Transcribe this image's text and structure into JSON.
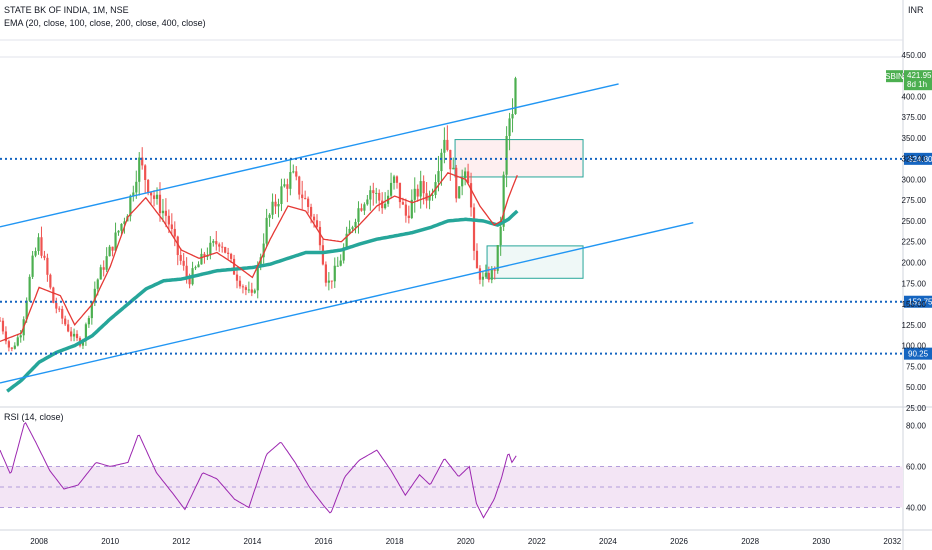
{
  "header": {
    "symbol_line": "STATE BK OF INDIA, 1M, NSE",
    "ema_line": "EMA (20, close, 100, close, 200, close, 400, close)",
    "currency": "INR"
  },
  "rsi_panel": {
    "title": "RSI (14, close)"
  },
  "price_tag": {
    "symbol": "SBIN",
    "price": "421.95",
    "time_left": "8d 1h"
  },
  "colors": {
    "up": "#4caf50",
    "down": "#ef5350",
    "ema20": "#e53935",
    "ema_long": "#26a69a",
    "channel": "#2196f3",
    "level": "#1565c0",
    "rsi": "#9c27b0",
    "rsi_band": "#f3e5f5"
  },
  "chart_data": [
    {
      "type": "candlestick",
      "title": "STATE BK OF INDIA, 1M, NSE",
      "x_axis": {
        "ticks": [
          "2008",
          "2010",
          "2012",
          "2014",
          "2016",
          "2018",
          "2020",
          "2022",
          "2024",
          "2026",
          "2028",
          "2030",
          "2032"
        ]
      },
      "y_axis": {
        "unit": "INR",
        "ylim": [
          20,
          450
        ],
        "ticks": [
          "450.00",
          "425.00",
          "400.00",
          "375.00",
          "350.00",
          "325.00",
          "300.00",
          "275.00",
          "250.00",
          "225.00",
          "200.00",
          "175.00",
          "150.00",
          "125.00",
          "100.00",
          "75.00",
          "50.00",
          "25.00"
        ]
      },
      "horizontal_levels": [
        "324.80",
        "152.75",
        "90.25"
      ],
      "last_price": 421.95,
      "price_anchors": [
        {
          "x": 2006.9,
          "y": 130
        },
        {
          "x": 2007.2,
          "y": 92
        },
        {
          "x": 2007.5,
          "y": 118
        },
        {
          "x": 2007.8,
          "y": 198
        },
        {
          "x": 2008.0,
          "y": 228
        },
        {
          "x": 2008.4,
          "y": 152
        },
        {
          "x": 2008.9,
          "y": 113
        },
        {
          "x": 2009.2,
          "y": 102
        },
        {
          "x": 2009.6,
          "y": 175
        },
        {
          "x": 2010.0,
          "y": 215
        },
        {
          "x": 2010.5,
          "y": 265
        },
        {
          "x": 2010.8,
          "y": 322
        },
        {
          "x": 2011.2,
          "y": 280
        },
        {
          "x": 2011.6,
          "y": 255
        },
        {
          "x": 2011.9,
          "y": 210
        },
        {
          "x": 2012.2,
          "y": 178
        },
        {
          "x": 2012.7,
          "y": 212
        },
        {
          "x": 2013.1,
          "y": 228
        },
        {
          "x": 2013.5,
          "y": 188
        },
        {
          "x": 2013.8,
          "y": 168
        },
        {
          "x": 2014.0,
          "y": 157
        },
        {
          "x": 2014.4,
          "y": 248
        },
        {
          "x": 2014.8,
          "y": 285
        },
        {
          "x": 2015.1,
          "y": 305
        },
        {
          "x": 2015.6,
          "y": 265
        },
        {
          "x": 2015.9,
          "y": 230
        },
        {
          "x": 2016.1,
          "y": 172
        },
        {
          "x": 2016.4,
          "y": 195
        },
        {
          "x": 2016.9,
          "y": 258
        },
        {
          "x": 2017.3,
          "y": 290
        },
        {
          "x": 2017.7,
          "y": 268
        },
        {
          "x": 2018.0,
          "y": 300
        },
        {
          "x": 2018.3,
          "y": 255
        },
        {
          "x": 2018.7,
          "y": 290
        },
        {
          "x": 2019.0,
          "y": 278
        },
        {
          "x": 2019.4,
          "y": 355
        },
        {
          "x": 2019.8,
          "y": 275
        },
        {
          "x": 2019.95,
          "y": 325
        },
        {
          "x": 2020.1,
          "y": 300
        },
        {
          "x": 2020.25,
          "y": 195
        },
        {
          "x": 2020.5,
          "y": 178
        },
        {
          "x": 2020.8,
          "y": 190
        },
        {
          "x": 2020.95,
          "y": 225
        },
        {
          "x": 2021.05,
          "y": 290
        },
        {
          "x": 2021.2,
          "y": 375
        },
        {
          "x": 2021.3,
          "y": 365
        },
        {
          "x": 2021.45,
          "y": 422
        }
      ],
      "ema20_anchors": [
        {
          "x": 2006.9,
          "y": 105
        },
        {
          "x": 2007.5,
          "y": 115
        },
        {
          "x": 2008.0,
          "y": 170
        },
        {
          "x": 2008.6,
          "y": 160
        },
        {
          "x": 2009.0,
          "y": 125
        },
        {
          "x": 2009.5,
          "y": 150
        },
        {
          "x": 2010.0,
          "y": 195
        },
        {
          "x": 2010.5,
          "y": 255
        },
        {
          "x": 2011.0,
          "y": 278
        },
        {
          "x": 2011.5,
          "y": 250
        },
        {
          "x": 2012.0,
          "y": 215
        },
        {
          "x": 2012.5,
          "y": 205
        },
        {
          "x": 2013.0,
          "y": 212
        },
        {
          "x": 2013.5,
          "y": 198
        },
        {
          "x": 2014.0,
          "y": 182
        },
        {
          "x": 2014.5,
          "y": 228
        },
        {
          "x": 2015.0,
          "y": 268
        },
        {
          "x": 2015.5,
          "y": 262
        },
        {
          "x": 2016.0,
          "y": 228
        },
        {
          "x": 2016.5,
          "y": 225
        },
        {
          "x": 2017.0,
          "y": 245
        },
        {
          "x": 2017.5,
          "y": 268
        },
        {
          "x": 2018.0,
          "y": 280
        },
        {
          "x": 2018.5,
          "y": 272
        },
        {
          "x": 2019.0,
          "y": 280
        },
        {
          "x": 2019.5,
          "y": 308
        },
        {
          "x": 2020.0,
          "y": 300
        },
        {
          "x": 2020.4,
          "y": 268
        },
        {
          "x": 2020.8,
          "y": 245
        },
        {
          "x": 2021.0,
          "y": 250
        },
        {
          "x": 2021.2,
          "y": 278
        },
        {
          "x": 2021.45,
          "y": 305
        }
      ],
      "ema_long_anchors": [
        {
          "x": 2007.1,
          "y": 45
        },
        {
          "x": 2007.5,
          "y": 58
        },
        {
          "x": 2008.0,
          "y": 80
        },
        {
          "x": 2008.5,
          "y": 92
        },
        {
          "x": 2009.0,
          "y": 100
        },
        {
          "x": 2009.5,
          "y": 112
        },
        {
          "x": 2010.0,
          "y": 132
        },
        {
          "x": 2010.5,
          "y": 150
        },
        {
          "x": 2011.0,
          "y": 168
        },
        {
          "x": 2011.5,
          "y": 178
        },
        {
          "x": 2012.0,
          "y": 180
        },
        {
          "x": 2012.5,
          "y": 185
        },
        {
          "x": 2013.0,
          "y": 190
        },
        {
          "x": 2013.5,
          "y": 192
        },
        {
          "x": 2014.0,
          "y": 194
        },
        {
          "x": 2014.5,
          "y": 198
        },
        {
          "x": 2015.0,
          "y": 205
        },
        {
          "x": 2015.5,
          "y": 212
        },
        {
          "x": 2016.0,
          "y": 212
        },
        {
          "x": 2016.5,
          "y": 215
        },
        {
          "x": 2017.0,
          "y": 222
        },
        {
          "x": 2017.5,
          "y": 228
        },
        {
          "x": 2018.0,
          "y": 232
        },
        {
          "x": 2018.5,
          "y": 236
        },
        {
          "x": 2019.0,
          "y": 242
        },
        {
          "x": 2019.5,
          "y": 250
        },
        {
          "x": 2020.0,
          "y": 252
        },
        {
          "x": 2020.5,
          "y": 250
        },
        {
          "x": 2020.9,
          "y": 245
        },
        {
          "x": 2021.2,
          "y": 252
        },
        {
          "x": 2021.45,
          "y": 262
        }
      ],
      "channel_upper": [
        {
          "x": 2006.9,
          "y": 243
        },
        {
          "x": 2024.3,
          "y": 415
        }
      ],
      "channel_lower": [
        {
          "x": 2006.9,
          "y": 55
        },
        {
          "x": 2026.4,
          "y": 248
        }
      ],
      "zones": [
        {
          "x1": 2019.7,
          "x2": 2023.3,
          "y1": 303,
          "y2": 348
        },
        {
          "x1": 2020.6,
          "x2": 2023.3,
          "y1": 181,
          "y2": 220
        }
      ]
    },
    {
      "type": "line",
      "title": "RSI (14, close)",
      "ylim": [
        25,
        90
      ],
      "y_ticks": [
        "80.00",
        "60.00",
        "40.00"
      ],
      "band": [
        40,
        60
      ],
      "midline": 50,
      "anchors": [
        {
          "x": 2006.9,
          "y": 68
        },
        {
          "x": 2007.2,
          "y": 56
        },
        {
          "x": 2007.6,
          "y": 82
        },
        {
          "x": 2007.9,
          "y": 72
        },
        {
          "x": 2008.3,
          "y": 58
        },
        {
          "x": 2008.7,
          "y": 49
        },
        {
          "x": 2009.1,
          "y": 51
        },
        {
          "x": 2009.6,
          "y": 62
        },
        {
          "x": 2010.0,
          "y": 60
        },
        {
          "x": 2010.5,
          "y": 62
        },
        {
          "x": 2010.8,
          "y": 76
        },
        {
          "x": 2011.3,
          "y": 57
        },
        {
          "x": 2011.8,
          "y": 46
        },
        {
          "x": 2012.1,
          "y": 39
        },
        {
          "x": 2012.6,
          "y": 57
        },
        {
          "x": 2013.0,
          "y": 54
        },
        {
          "x": 2013.5,
          "y": 44
        },
        {
          "x": 2013.9,
          "y": 40
        },
        {
          "x": 2014.4,
          "y": 66
        },
        {
          "x": 2014.8,
          "y": 72
        },
        {
          "x": 2015.2,
          "y": 62
        },
        {
          "x": 2015.6,
          "y": 50
        },
        {
          "x": 2016.0,
          "y": 41
        },
        {
          "x": 2016.2,
          "y": 37
        },
        {
          "x": 2016.6,
          "y": 55
        },
        {
          "x": 2017.0,
          "y": 63
        },
        {
          "x": 2017.5,
          "y": 68
        },
        {
          "x": 2017.9,
          "y": 58
        },
        {
          "x": 2018.3,
          "y": 46
        },
        {
          "x": 2018.7,
          "y": 56
        },
        {
          "x": 2019.0,
          "y": 51
        },
        {
          "x": 2019.4,
          "y": 64
        },
        {
          "x": 2019.8,
          "y": 55
        },
        {
          "x": 2020.1,
          "y": 60
        },
        {
          "x": 2020.3,
          "y": 42
        },
        {
          "x": 2020.5,
          "y": 35
        },
        {
          "x": 2020.8,
          "y": 44
        },
        {
          "x": 2021.0,
          "y": 54
        },
        {
          "x": 2021.2,
          "y": 67
        },
        {
          "x": 2021.3,
          "y": 62
        },
        {
          "x": 2021.45,
          "y": 66
        }
      ]
    }
  ]
}
